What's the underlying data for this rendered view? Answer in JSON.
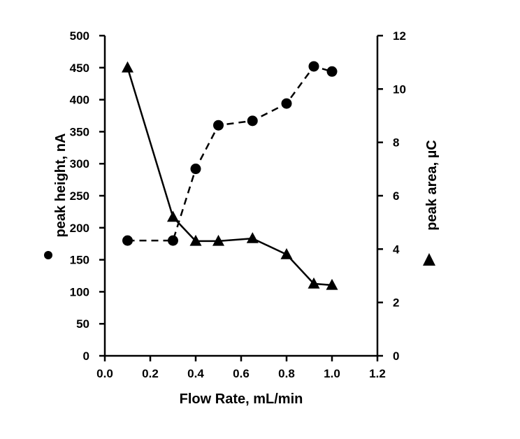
{
  "chart_data": {
    "type": "scatter",
    "xlabel": "Flow Rate, mL/min",
    "ylabel_left": "peak height, nA",
    "ylabel_right": "peak area, µC",
    "xlim": [
      0,
      1.2
    ],
    "ylim_left": [
      0,
      500
    ],
    "ylim_right": [
      0,
      12
    ],
    "x_ticks": [
      "0.0",
      "0.2",
      "0.4",
      "0.6",
      "0.8",
      "1.0",
      "1.2"
    ],
    "y_left_ticks": [
      "0",
      "50",
      "100",
      "150",
      "200",
      "250",
      "300",
      "350",
      "400",
      "450",
      "500"
    ],
    "y_right_ticks": [
      "0",
      "2",
      "4",
      "6",
      "8",
      "10",
      "12"
    ],
    "grid": false,
    "legend": "none",
    "series": [
      {
        "marker": "circle",
        "line_style": "dashed",
        "axis": "left",
        "x": [
          0.1,
          0.3,
          0.4,
          0.5,
          0.65,
          0.8,
          0.92,
          1.0
        ],
        "y": [
          180,
          180,
          292,
          360,
          367,
          394,
          452,
          444
        ]
      },
      {
        "marker": "triangle",
        "line_style": "solid",
        "axis": "right",
        "x": [
          0.1,
          0.3,
          0.4,
          0.5,
          0.65,
          0.8,
          0.92,
          1.0
        ],
        "y": [
          10.8,
          5.2,
          4.3,
          4.3,
          4.4,
          3.8,
          2.7,
          2.65
        ]
      }
    ]
  }
}
